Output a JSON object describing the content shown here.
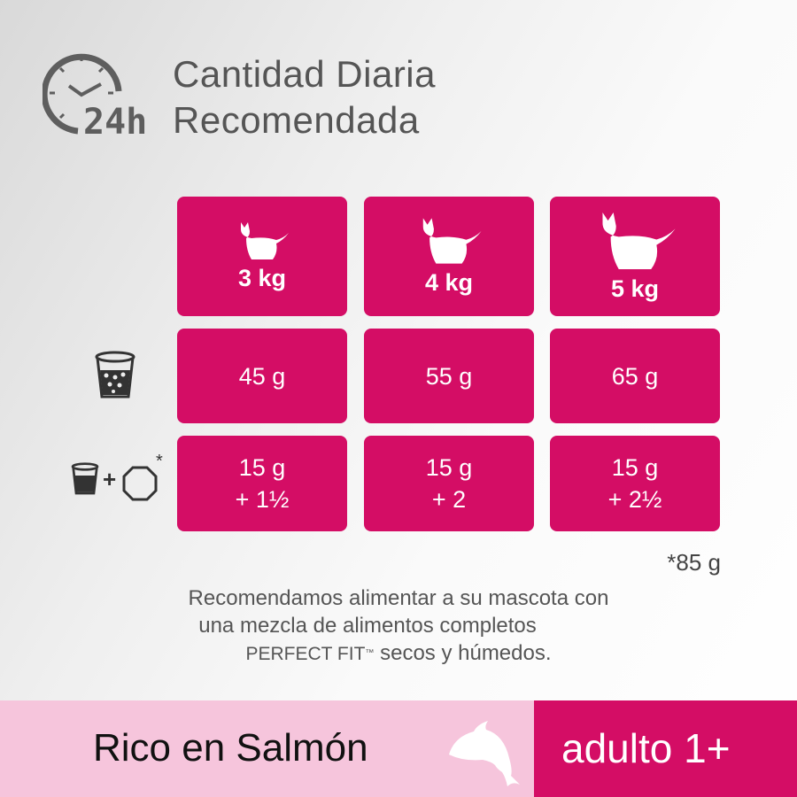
{
  "header": {
    "icon": "clock-24h-icon",
    "badge": "24h",
    "title_line1": "Cantidad Diaria",
    "title_line2": "Recomendada"
  },
  "table": {
    "columns": [
      {
        "icon": "cat-small-icon",
        "weight": "3 kg"
      },
      {
        "icon": "cat-medium-icon",
        "weight": "4 kg"
      },
      {
        "icon": "cat-large-icon",
        "weight": "5 kg"
      }
    ],
    "rows": [
      {
        "icon": "dry-food-cup-icon",
        "values": [
          "45 g",
          "55 g",
          "65 g"
        ]
      },
      {
        "icon": "dry-food-plus-wet-pouch-icon",
        "plus": "+",
        "asterisk": "*",
        "values": [
          [
            "15 g",
            "+ 1½"
          ],
          [
            "15 g",
            "+ 2"
          ],
          [
            "15 g",
            "+ 2½"
          ]
        ]
      }
    ]
  },
  "footnote": "*85 g",
  "recommendation": {
    "line1": "Recomendamos alimentar a su mascota con",
    "line2": "una mezcla de alimentos completos",
    "line3_brand": "PERFECT FIT",
    "line3_tm": "™",
    "line3_rest": " secos y húmedos."
  },
  "footer": {
    "flavor": "Rico en Salmón",
    "flavor_icon": "salmon-icon",
    "age": "adulto 1+"
  },
  "colors": {
    "accent": "#d40d65",
    "accent_light": "#f6c5dc",
    "text": "#555555"
  }
}
